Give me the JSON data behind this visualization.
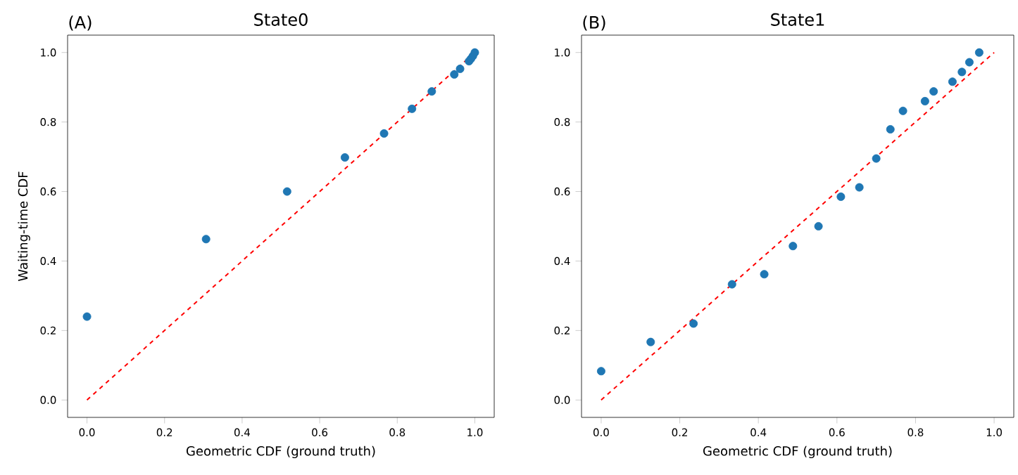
{
  "chart_data": [
    {
      "type": "scatter",
      "title": "State0",
      "annotations": [
        "(A)"
      ],
      "xlabel": "Geometric CDF (ground truth)",
      "ylabel": "Waiting-time CDF",
      "xlim": [
        -0.05,
        1.05
      ],
      "ylim": [
        -0.05,
        1.05
      ],
      "xticks": [
        {
          "value": 0,
          "label": "0.0"
        },
        {
          "value": 0.2,
          "label": "0.2"
        },
        {
          "value": 0.4,
          "label": "0.4"
        },
        {
          "value": 0.6,
          "label": "0.6"
        },
        {
          "value": 0.8,
          "label": "0.8"
        },
        {
          "value": 1,
          "label": "1.0"
        }
      ],
      "yticks": [
        {
          "value": 0,
          "label": "0.0"
        },
        {
          "value": 0.2,
          "label": "0.2"
        },
        {
          "value": 0.4,
          "label": "0.4"
        },
        {
          "value": 0.6,
          "label": "0.6"
        },
        {
          "value": 0.8,
          "label": "0.8"
        },
        {
          "value": 1,
          "label": "1.0"
        }
      ],
      "series": [
        {
          "color": "#1f77b4",
          "marker": "circle",
          "x": [
            0,
            0.307,
            0.516,
            0.665,
            0.766,
            0.838,
            0.889,
            0.947,
            0.962,
            0.985,
            0.99,
            0.995,
            1.0
          ],
          "values": [
            0.24,
            0.463,
            0.6,
            0.698,
            0.767,
            0.838,
            0.888,
            0.937,
            0.953,
            0.975,
            0.982,
            0.99,
            1.0
          ]
        },
        {
          "type": "line",
          "color": "#ff0000",
          "line_style": "dashed",
          "marker": "none",
          "x": [
            0,
            1
          ],
          "values": [
            0,
            1
          ]
        }
      ]
    },
    {
      "type": "scatter",
      "title": "State1",
      "annotations": [
        "(B)"
      ],
      "xlabel": "Geometric CDF (ground truth)",
      "xlim": [
        -0.05,
        1.05
      ],
      "ylim": [
        -0.05,
        1.05
      ],
      "xticks": [
        {
          "value": 0,
          "label": "0.0"
        },
        {
          "value": 0.2,
          "label": "0.2"
        },
        {
          "value": 0.4,
          "label": "0.4"
        },
        {
          "value": 0.6,
          "label": "0.6"
        },
        {
          "value": 0.8,
          "label": "0.8"
        },
        {
          "value": 1,
          "label": "1.0"
        }
      ],
      "yticks": [
        {
          "value": 0,
          "label": "0.0"
        },
        {
          "value": 0.2,
          "label": "0.2"
        },
        {
          "value": 0.4,
          "label": "0.4"
        },
        {
          "value": 0.6,
          "label": "0.6"
        },
        {
          "value": 0.8,
          "label": "0.8"
        },
        {
          "value": 1,
          "label": "1.0"
        }
      ],
      "series": [
        {
          "color": "#1f77b4",
          "marker": "circle",
          "x": [
            0,
            0.126,
            0.235,
            0.333,
            0.415,
            0.488,
            0.553,
            0.61,
            0.657,
            0.7,
            0.736,
            0.768,
            0.824,
            0.846,
            0.894,
            0.918,
            0.937,
            0.962
          ],
          "values": [
            0.083,
            0.167,
            0.22,
            0.333,
            0.362,
            0.443,
            0.5,
            0.585,
            0.612,
            0.695,
            0.779,
            0.832,
            0.86,
            0.888,
            0.916,
            0.944,
            0.972,
            1.0
          ]
        },
        {
          "type": "line",
          "color": "#ff0000",
          "line_style": "dashed",
          "marker": "none",
          "x": [
            0,
            1
          ],
          "values": [
            0,
            1
          ]
        }
      ]
    }
  ]
}
